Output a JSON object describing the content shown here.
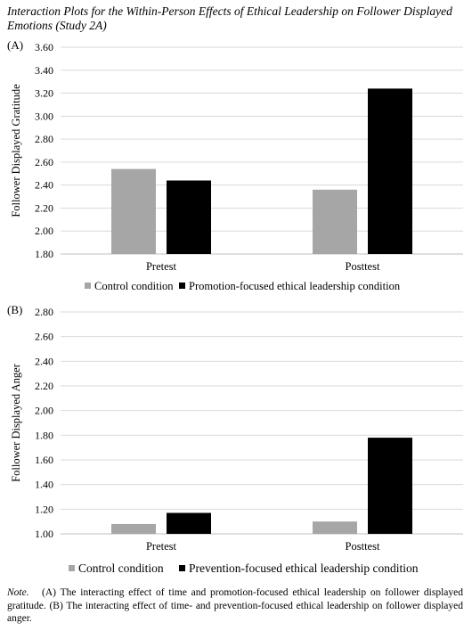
{
  "title": "Interaction Plots for the Within-Person Effects of Ethical Leadership on Follower Displayed Emotions (Study 2A)",
  "chart_data": [
    {
      "type": "bar",
      "panel_label": "(A)",
      "categories": [
        "Pretest",
        "Posttest"
      ],
      "ylabel": "Follower Displayed Gratitude",
      "ylim": [
        1.8,
        3.6
      ],
      "yticks": [
        "1.80",
        "2.00",
        "2.20",
        "2.40",
        "2.60",
        "2.80",
        "3.00",
        "3.20",
        "3.40",
        "3.60"
      ],
      "series": [
        {
          "name": "Control condition",
          "color": "#a6a6a6",
          "values": [
            2.54,
            2.36
          ]
        },
        {
          "name": "Promotion-focused ethical leadership condition",
          "color": "#000000",
          "values": [
            2.44,
            3.24
          ]
        }
      ],
      "legend": "bottom"
    },
    {
      "type": "bar",
      "panel_label": "(B)",
      "categories": [
        "Pretest",
        "Posttest"
      ],
      "ylabel": "Follower Displayed Anger",
      "ylim": [
        1.0,
        2.8
      ],
      "yticks": [
        "1.00",
        "1.20",
        "1.40",
        "1.60",
        "1.80",
        "2.00",
        "2.20",
        "2.40",
        "2.60",
        "2.80"
      ],
      "series": [
        {
          "name": "Control condition",
          "color": "#a6a6a6",
          "values": [
            1.08,
            1.1
          ]
        },
        {
          "name": "Prevention-focused ethical leadership condition",
          "color": "#000000",
          "values": [
            1.17,
            1.78
          ]
        }
      ],
      "legend": "bottom"
    }
  ],
  "note": {
    "label": "Note.",
    "text": "(A) The interacting effect of time and promotion-focused ethical leadership on follower displayed gratitude. (B) The interacting effect of time- and prevention-focused ethical leadership on follower displayed anger."
  }
}
